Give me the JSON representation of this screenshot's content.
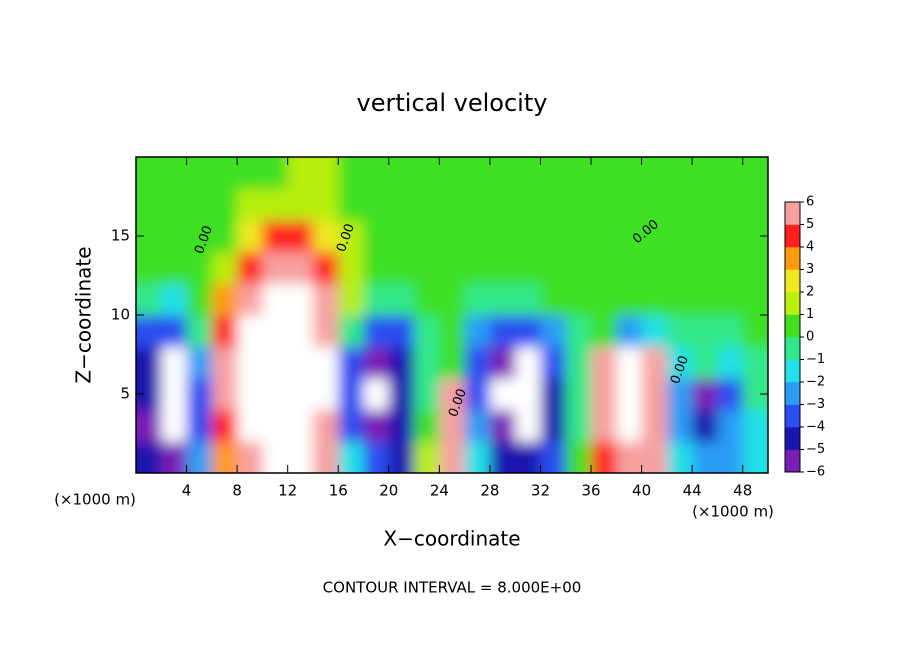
{
  "chart_data": {
    "type": "contourf",
    "title": "vertical velocity",
    "x_label": "X−coordinate",
    "y_label": "Z−coordinate",
    "x_unit": "(×1000 m)",
    "footer": "CONTOUR INTERVAL = 8.000E+00",
    "contour_label": "0.00",
    "x": [
      1,
      3,
      5,
      7,
      9,
      11,
      13,
      15,
      17,
      19,
      21,
      23,
      25,
      27,
      29,
      31,
      33,
      35,
      37,
      39,
      41,
      43,
      45,
      47,
      49
    ],
    "y": [
      1,
      3,
      5,
      7,
      9,
      11,
      13,
      15,
      17,
      19
    ],
    "z": [
      [
        -5,
        -6,
        -3,
        3,
        6,
        7,
        7,
        5,
        -2,
        -4,
        -5,
        1,
        5,
        -2,
        -5,
        -5,
        -4,
        0,
        4,
        6,
        5,
        -2,
        -3,
        -3,
        -2
      ],
      [
        -6,
        -8,
        -4,
        4,
        9,
        10,
        10,
        6,
        -4,
        -6,
        -5,
        0,
        6,
        -3,
        -6,
        -8,
        -5,
        -1,
        5,
        8,
        5,
        -3,
        -5,
        -3,
        -2
      ],
      [
        -5,
        -8,
        -4,
        5,
        10,
        11,
        11,
        7,
        -4,
        -7,
        -5,
        -1,
        5,
        -4,
        -7,
        -8,
        -5,
        -1,
        6,
        10,
        6,
        -3,
        -6,
        -4,
        -1
      ],
      [
        -5,
        -7,
        -3,
        5,
        9,
        10,
        10,
        7,
        -4,
        -6,
        -5,
        -1,
        0.5,
        -4,
        -6,
        -7,
        -4,
        -1,
        5,
        9,
        6,
        -2,
        -1,
        -2,
        -1
      ],
      [
        -4,
        -3.5,
        -1,
        4,
        7,
        8,
        8,
        6,
        -1,
        -4,
        -3.5,
        -0.5,
        0.3,
        -3,
        -4,
        -4,
        -3,
        -1,
        0.3,
        -3,
        -2,
        -1,
        -0.5,
        -0.3,
        0.2
      ],
      [
        -1,
        -1.5,
        0,
        3,
        5.5,
        7,
        7,
        5,
        1,
        -1,
        -0.5,
        0.2,
        0.2,
        -0.5,
        -0.5,
        -0.3,
        0.2,
        0.2,
        0.3,
        0.5,
        0.8,
        0.5,
        0.3,
        0.2,
        0.2
      ],
      [
        0.2,
        0.2,
        0.3,
        1.5,
        4.5,
        5,
        5,
        4.5,
        1.2,
        0.2,
        0.2,
        0.2,
        0.2,
        0.2,
        0.2,
        0.2,
        0.2,
        0.2,
        0.3,
        0.4,
        0.5,
        0.4,
        0.3,
        0.2,
        0.2
      ],
      [
        0.3,
        0.3,
        0.3,
        0.8,
        2.5,
        4,
        4,
        2.5,
        1,
        0.3,
        0.3,
        0.3,
        0.3,
        0.3,
        0.3,
        0.3,
        0.3,
        0.3,
        0.3,
        0.3,
        0.3,
        0.3,
        0.3,
        0.3,
        0.3
      ],
      [
        0.3,
        0.3,
        0.3,
        0.5,
        1.2,
        1.5,
        1.5,
        1.2,
        0.8,
        0.4,
        0.3,
        0.3,
        0.3,
        0.3,
        0.3,
        0.3,
        0.3,
        0.3,
        0.3,
        0.3,
        0.3,
        0.3,
        0.3,
        0.3,
        0.3
      ],
      [
        0.3,
        0.3,
        0.3,
        0.3,
        0.5,
        0.8,
        1,
        1,
        0.8,
        0.5,
        0.3,
        0.3,
        0.3,
        0.3,
        0.3,
        0.3,
        0.3,
        0.3,
        0.3,
        0.3,
        0.3,
        0.3,
        0.3,
        0.3,
        0.3
      ]
    ],
    "xlim": [
      0,
      50
    ],
    "xticks": [
      4,
      8,
      12,
      16,
      20,
      24,
      28,
      32,
      36,
      40,
      44,
      48
    ],
    "ylim": [
      0,
      20
    ],
    "yticks": [
      5,
      10,
      15
    ],
    "colorbar_ticks": [
      {
        "value": -6,
        "label": "−6"
      },
      {
        "value": -5,
        "label": "−5"
      },
      {
        "value": -4,
        "label": "−4"
      },
      {
        "value": -3,
        "label": "−3"
      },
      {
        "value": -2,
        "label": "−2"
      },
      {
        "value": -1,
        "label": "−1"
      },
      0,
      1,
      2,
      3,
      4,
      5,
      6
    ],
    "colors": [
      "#7a1fb5",
      "#1a14b0",
      "#2a4ef0",
      "#2a9cf5",
      "#22e0e8",
      "#30e88a",
      "#3ee020",
      "#b8ee10",
      "#f0e820",
      "#ff9a10",
      "#ff2020",
      "#f7a0a0"
    ],
    "out_of_range_color": "#ffffff"
  }
}
